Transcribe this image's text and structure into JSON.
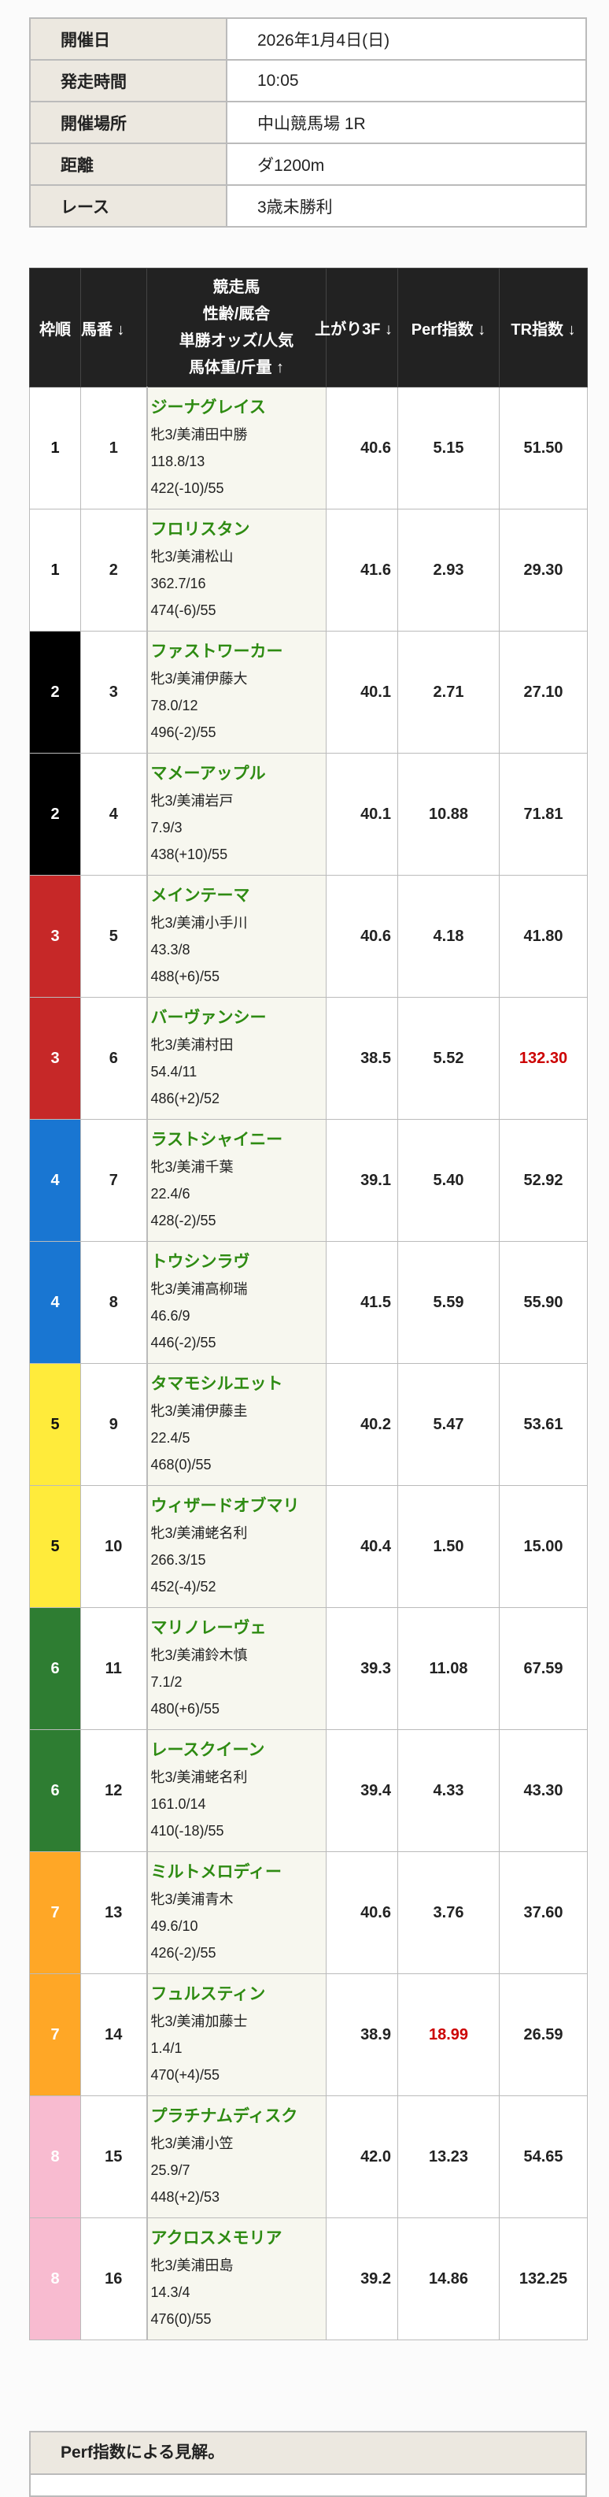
{
  "info": [
    {
      "label": "開催日",
      "value": "2026年1月4日(日)"
    },
    {
      "label": "発走時間",
      "value": "10:05"
    },
    {
      "label": "開催場所",
      "value": "中山競馬場 1R"
    },
    {
      "label": "距離",
      "value": "ダ1200m"
    },
    {
      "label": "レース",
      "value": "3歳未勝利"
    }
  ],
  "table": {
    "headers": {
      "frame": "枠順",
      "number": "馬番 ↓",
      "horse": [
        "競走馬",
        "性齢/厩舎",
        "単勝オッズ/人気",
        "馬体重/斤量 ↑"
      ],
      "last3f": "上がり3F ↓",
      "perf": "Perf指数 ↓",
      "tr": "TR指数 ↓"
    },
    "frame_colors": {
      "1": "#ffffff",
      "2": "#000000",
      "3": "#c62828",
      "4": "#1976d2",
      "5": "#ffeb3b",
      "6": "#2e7d32",
      "7": "#ffa726",
      "8": "#f8bbd0"
    },
    "highlight_color": "#cc0000",
    "rows": [
      {
        "frame": "1",
        "number": "1",
        "name": "ジーナグレイス",
        "sex_stable": "牝3/美浦田中勝",
        "odds": "118.8/13",
        "weight": "422(-10)/55",
        "last3f": "40.6",
        "perf": "5.15",
        "tr": "51.50"
      },
      {
        "frame": "1",
        "number": "2",
        "name": "フロリスタン",
        "sex_stable": "牝3/美浦松山",
        "odds": "362.7/16",
        "weight": "474(-6)/55",
        "last3f": "41.6",
        "perf": "2.93",
        "tr": "29.30"
      },
      {
        "frame": "2",
        "number": "3",
        "name": "ファストワーカー",
        "sex_stable": "牝3/美浦伊藤大",
        "odds": "78.0/12",
        "weight": "496(-2)/55",
        "last3f": "40.1",
        "perf": "2.71",
        "tr": "27.10"
      },
      {
        "frame": "2",
        "number": "4",
        "name": "マメーアップル",
        "sex_stable": "牝3/美浦岩戸",
        "odds": "7.9/3",
        "weight": "438(+10)/55",
        "last3f": "40.1",
        "perf": "10.88",
        "tr": "71.81"
      },
      {
        "frame": "3",
        "number": "5",
        "name": "メインテーマ",
        "sex_stable": "牝3/美浦小手川",
        "odds": "43.3/8",
        "weight": "488(+6)/55",
        "last3f": "40.6",
        "perf": "4.18",
        "tr": "41.80"
      },
      {
        "frame": "3",
        "number": "6",
        "name": "バーヴァンシー",
        "sex_stable": "牝3/美浦村田",
        "odds": "54.4/11",
        "weight": "486(+2)/52",
        "last3f": "38.5",
        "perf": "5.52",
        "tr": "132.30",
        "tr_highlight": true
      },
      {
        "frame": "4",
        "number": "7",
        "name": "ラストシャイニー",
        "sex_stable": "牝3/美浦千葉",
        "odds": "22.4/6",
        "weight": "428(-2)/55",
        "last3f": "39.1",
        "perf": "5.40",
        "tr": "52.92"
      },
      {
        "frame": "4",
        "number": "8",
        "name": "トウシンラヴ",
        "sex_stable": "牝3/美浦高柳瑞",
        "odds": "46.6/9",
        "weight": "446(-2)/55",
        "last3f": "41.5",
        "perf": "5.59",
        "tr": "55.90"
      },
      {
        "frame": "5",
        "number": "9",
        "name": "タマモシルエット",
        "sex_stable": "牝3/美浦伊藤圭",
        "odds": "22.4/5",
        "weight": "468(0)/55",
        "last3f": "40.2",
        "perf": "5.47",
        "tr": "53.61"
      },
      {
        "frame": "5",
        "number": "10",
        "name": "ウィザードオブマリ",
        "sex_stable": "牝3/美浦蛯名利",
        "odds": "266.3/15",
        "weight": "452(-4)/52",
        "last3f": "40.4",
        "perf": "1.50",
        "tr": "15.00"
      },
      {
        "frame": "6",
        "number": "11",
        "name": "マリノレーヴェ",
        "sex_stable": "牝3/美浦鈴木慎",
        "odds": "7.1/2",
        "weight": "480(+6)/55",
        "last3f": "39.3",
        "perf": "11.08",
        "tr": "67.59"
      },
      {
        "frame": "6",
        "number": "12",
        "name": "レースクイーン",
        "sex_stable": "牝3/美浦蛯名利",
        "odds": "161.0/14",
        "weight": "410(-18)/55",
        "last3f": "39.4",
        "perf": "4.33",
        "tr": "43.30"
      },
      {
        "frame": "7",
        "number": "13",
        "name": "ミルトメロディー",
        "sex_stable": "牝3/美浦青木",
        "odds": "49.6/10",
        "weight": "426(-2)/55",
        "last3f": "40.6",
        "perf": "3.76",
        "tr": "37.60"
      },
      {
        "frame": "7",
        "number": "14",
        "name": "フュルスティン",
        "sex_stable": "牝3/美浦加藤士",
        "odds": "1.4/1",
        "weight": "470(+4)/55",
        "last3f": "38.9",
        "perf": "18.99",
        "tr": "26.59",
        "perf_highlight": true
      },
      {
        "frame": "8",
        "number": "15",
        "name": "プラチナムディスク",
        "sex_stable": "牝3/美浦小笠",
        "odds": "25.9/7",
        "weight": "448(+2)/53",
        "last3f": "42.0",
        "perf": "13.23",
        "tr": "54.65"
      },
      {
        "frame": "8",
        "number": "16",
        "name": "アクロスメモリア",
        "sex_stable": "牝3/美浦田島",
        "odds": "14.3/4",
        "weight": "476(0)/55",
        "last3f": "39.2",
        "perf": "14.86",
        "tr": "132.25"
      }
    ]
  },
  "view_section": {
    "title": "Perf指数による見解。"
  }
}
